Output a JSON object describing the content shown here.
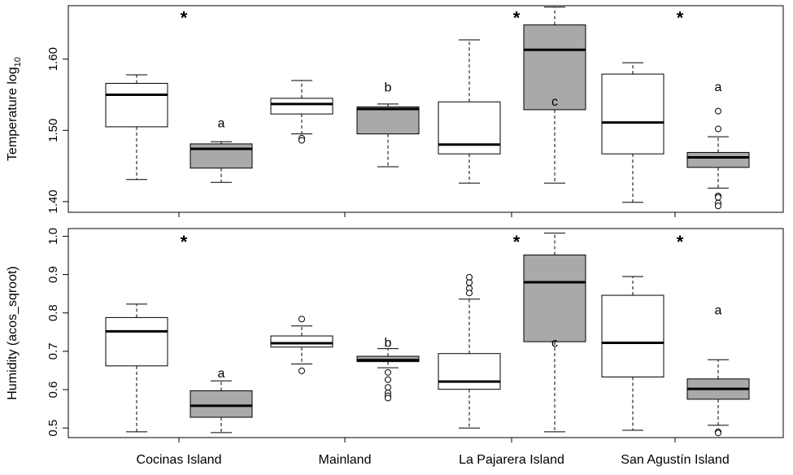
{
  "chart_data": [
    {
      "type": "box",
      "ylabel_main": "Temperature log",
      "ylabel_sub": "10",
      "ylim": [
        1.385,
        1.675
      ],
      "yticks": [
        "1.40",
        "1.50",
        "1.60"
      ],
      "ytick_values": [
        1.4,
        1.5,
        1.6
      ],
      "boxes": [
        {
          "group": "Cocinas Island",
          "fill": "#ffffff",
          "whisker_low": 1.431,
          "q1": 1.505,
          "median": 1.55,
          "q3": 1.566,
          "whisker_high": 1.578,
          "outliers": []
        },
        {
          "group": "Cocinas Island",
          "fill": "#a9a9a9",
          "whisker_low": 1.427,
          "q1": 1.447,
          "median": 1.474,
          "q3": 1.481,
          "whisker_high": 1.484,
          "outliers": []
        },
        {
          "group": "Mainland",
          "fill": "#ffffff",
          "whisker_low": 1.495,
          "q1": 1.523,
          "median": 1.537,
          "q3": 1.545,
          "whisker_high": 1.57,
          "outliers": [
            1.489,
            1.486
          ]
        },
        {
          "group": "Mainland",
          "fill": "#a9a9a9",
          "whisker_low": 1.449,
          "q1": 1.495,
          "median": 1.53,
          "q3": 1.533,
          "whisker_high": 1.537,
          "outliers": []
        },
        {
          "group": "La Pajarera Island",
          "fill": "#ffffff",
          "whisker_low": 1.426,
          "q1": 1.467,
          "median": 1.48,
          "q3": 1.54,
          "whisker_high": 1.627,
          "outliers": []
        },
        {
          "group": "La Pajarera Island",
          "fill": "#a9a9a9",
          "whisker_low": 1.426,
          "q1": 1.529,
          "median": 1.613,
          "q3": 1.648,
          "whisker_high": 1.673,
          "outliers": []
        },
        {
          "group": "San Agustín Island",
          "fill": "#ffffff",
          "whisker_low": 1.399,
          "q1": 1.467,
          "median": 1.511,
          "q3": 1.579,
          "whisker_high": 1.595,
          "outliers": []
        },
        {
          "group": "San Agustín Island",
          "fill": "#a9a9a9",
          "whisker_low": 1.419,
          "q1": 1.448,
          "median": 1.462,
          "q3": 1.469,
          "whisker_high": 1.491,
          "outliers": [
            1.527,
            1.502,
            1.408,
            1.406,
            1.398,
            1.394
          ]
        }
      ],
      "annotations": [
        {
          "text": "*",
          "box": 0,
          "offset": 1,
          "y": 1.661,
          "kind": "star"
        },
        {
          "text": "a",
          "box": 1,
          "offset": 0,
          "y": 1.51,
          "kind": "letter"
        },
        {
          "text": "b",
          "box": 3,
          "offset": 0,
          "y": 1.56,
          "kind": "letter"
        },
        {
          "text": "*",
          "box": 4,
          "offset": 1,
          "y": 1.661,
          "kind": "star"
        },
        {
          "text": "c",
          "box": 5,
          "offset": 0,
          "y": 1.54,
          "kind": "letter"
        },
        {
          "text": "*",
          "box": 6,
          "offset": 1,
          "y": 1.661,
          "kind": "star"
        },
        {
          "text": "a",
          "box": 7,
          "offset": 0,
          "y": 1.561,
          "kind": "letter"
        }
      ]
    },
    {
      "type": "box",
      "ylabel_main": "Humidity (acos_sqroot)",
      "ylabel_sub": "",
      "ylim": [
        0.475,
        1.02
      ],
      "yticks": [
        "0.5",
        "0.6",
        "0.7",
        "0.8",
        "0.9",
        "1.0"
      ],
      "ytick_values": [
        0.5,
        0.6,
        0.7,
        0.8,
        0.9,
        1.0
      ],
      "boxes": [
        {
          "group": "Cocinas Island",
          "fill": "#ffffff",
          "whisker_low": 0.49,
          "q1": 0.662,
          "median": 0.752,
          "q3": 0.788,
          "whisker_high": 0.823,
          "outliers": []
        },
        {
          "group": "Cocinas Island",
          "fill": "#a9a9a9",
          "whisker_low": 0.488,
          "q1": 0.528,
          "median": 0.558,
          "q3": 0.597,
          "whisker_high": 0.623,
          "outliers": []
        },
        {
          "group": "Mainland",
          "fill": "#ffffff",
          "whisker_low": 0.667,
          "q1": 0.711,
          "median": 0.721,
          "q3": 0.74,
          "whisker_high": 0.766,
          "outliers": [
            0.784,
            0.649
          ]
        },
        {
          "group": "Mainland",
          "fill": "#a9a9a9",
          "whisker_low": 0.657,
          "q1": 0.673,
          "median": 0.677,
          "q3": 0.687,
          "whisker_high": 0.707,
          "outliers": [
            0.645,
            0.626,
            0.606,
            0.592,
            0.584,
            0.578
          ]
        },
        {
          "group": "La Pajarera Island",
          "fill": "#ffffff",
          "whisker_low": 0.5,
          "q1": 0.601,
          "median": 0.621,
          "q3": 0.694,
          "whisker_high": 0.836,
          "outliers": [
            0.893,
            0.879,
            0.864,
            0.852
          ]
        },
        {
          "group": "La Pajarera Island",
          "fill": "#a9a9a9",
          "whisker_low": 0.49,
          "q1": 0.725,
          "median": 0.88,
          "q3": 0.951,
          "whisker_high": 1.008,
          "outliers": []
        },
        {
          "group": "San Agustín Island",
          "fill": "#ffffff",
          "whisker_low": 0.494,
          "q1": 0.633,
          "median": 0.722,
          "q3": 0.846,
          "whisker_high": 0.895,
          "outliers": []
        },
        {
          "group": "San Agustín Island",
          "fill": "#a9a9a9",
          "whisker_low": 0.507,
          "q1": 0.575,
          "median": 0.602,
          "q3": 0.628,
          "whisker_high": 0.678,
          "outliers": [
            0.49,
            0.487
          ]
        }
      ],
      "annotations": [
        {
          "text": "*",
          "box": 0,
          "offset": 1,
          "y": 0.99,
          "kind": "star"
        },
        {
          "text": "a",
          "box": 1,
          "offset": 0,
          "y": 0.643,
          "kind": "letter"
        },
        {
          "text": "b",
          "box": 3,
          "offset": 0,
          "y": 0.722,
          "kind": "letter"
        },
        {
          "text": "*",
          "box": 4,
          "offset": 1,
          "y": 0.99,
          "kind": "star"
        },
        {
          "text": "c",
          "box": 5,
          "offset": 0,
          "y": 0.722,
          "kind": "letter"
        },
        {
          "text": "*",
          "box": 6,
          "offset": 1,
          "y": 0.99,
          "kind": "star"
        },
        {
          "text": "a",
          "box": 7,
          "offset": 0,
          "y": 0.807,
          "kind": "letter"
        }
      ]
    }
  ],
  "categories": [
    "Cocinas Island",
    "Mainland",
    "La Pajarera Island",
    "San Agustín Island"
  ]
}
